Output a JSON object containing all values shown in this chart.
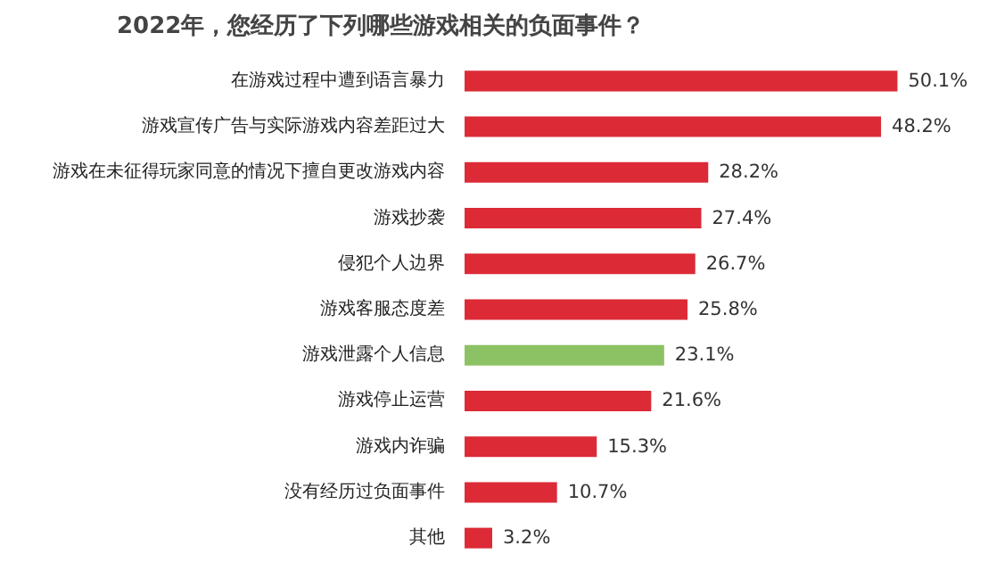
{
  "chart_data": {
    "type": "bar",
    "orientation": "horizontal",
    "title": "2022年，您经历了下列哪些游戏相关的负面事件？",
    "categories": [
      "在游戏过程中遭到语言暴力",
      "游戏宣传广告与实际游戏内容差距过大",
      "游戏在未征得玩家同意的情况下擅自更改游戏内容",
      "游戏抄袭",
      "侵犯个人边界",
      "游戏客服态度差",
      "游戏泄露个人信息",
      "游戏停止运营",
      "游戏内诈骗",
      "没有经历过负面事件",
      "其他"
    ],
    "values": [
      50.1,
      48.2,
      28.2,
      27.4,
      26.7,
      25.8,
      23.1,
      21.6,
      15.3,
      10.7,
      3.2
    ],
    "value_labels": [
      "50.1%",
      "48.2%",
      "28.2%",
      "27.4%",
      "26.7%",
      "25.8%",
      "23.1%",
      "21.6%",
      "15.3%",
      "10.7%",
      "3.2%"
    ],
    "colors": [
      "#dc2b37",
      "#dc2b37",
      "#dc2b37",
      "#dc2b37",
      "#dc2b37",
      "#dc2b37",
      "#8cc264",
      "#dc2b37",
      "#dc2b37",
      "#dc2b37",
      "#dc2b37"
    ],
    "grid": false
  }
}
